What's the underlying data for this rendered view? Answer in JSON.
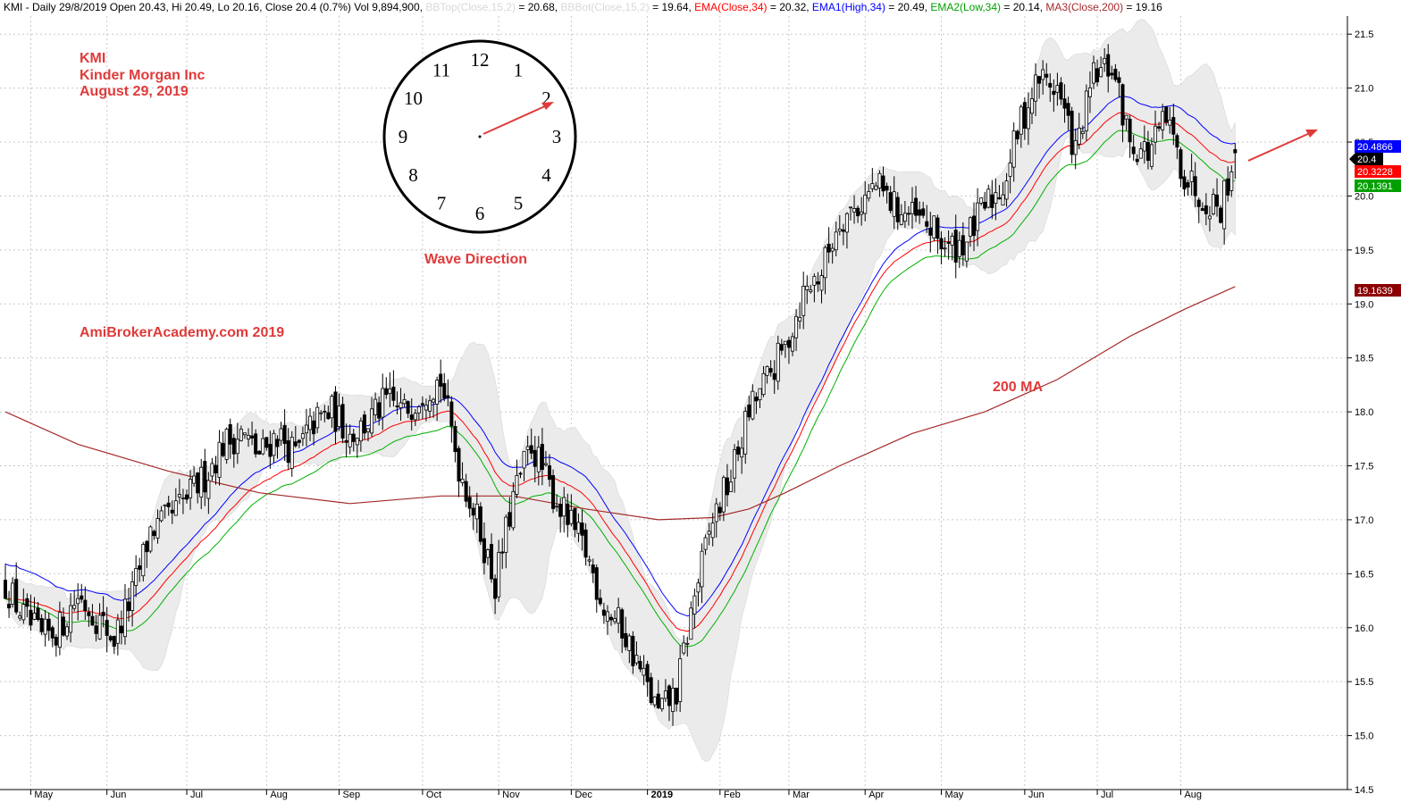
{
  "header": {
    "info": "KMI - Daily 29/8/2019 Open 20.43, Hi 20.49, Lo 20.16, Close 20.4 (0.7%) Vol 9,894,900",
    "bbtop_label": "BBTop(Close,15,2)",
    "bbtop_value": " = 20.68, ",
    "bbbot_label": "BBBot(Close,15,2)",
    "bbbot_value": " = 19.64, ",
    "ema_label": "EMA(Close,34)",
    "ema_value": " = 20.32, ",
    "ema1_label": "EMA1(High,34)",
    "ema1_value": " = 20.49, ",
    "ema2_label": "EMA2(Low,34)",
    "ema2_value": " = 20.14, ",
    "ma3_label": "MA3(Close,200)",
    "ma3_value": " = 19.16"
  },
  "annotations": {
    "ticker": "KMI",
    "company": "Kinder Morgan Inc",
    "date": "August 29, 2019",
    "watermark": "AmiBrokerAcademy.com  2019",
    "wave_direction": "Wave Direction",
    "ma_label": "200 MA"
  },
  "clock": {
    "numbers": [
      "12",
      "1",
      "2",
      "3",
      "4",
      "5",
      "6",
      "7",
      "8",
      "9",
      "10",
      "11"
    ],
    "hand_points_to": "2"
  },
  "price_tags": [
    {
      "label": "20.4866",
      "color": "#0000ff"
    },
    {
      "label": "20.4",
      "color": "#000000"
    },
    {
      "label": "20.3228",
      "color": "#ff0000"
    },
    {
      "label": "20.1391",
      "color": "#00a000"
    },
    {
      "label": "19.1639",
      "color": "#8b0000"
    }
  ],
  "colors": {
    "candle": "#000000",
    "bands_fill": "#ebebeb",
    "ema": "#ff0000",
    "ema1": "#0000ff",
    "ema2": "#00b000",
    "ma200": "#a52a2a",
    "annotation": "#e03a3a",
    "grid": "#c8c8c8"
  },
  "chart_data": {
    "type": "candlestick",
    "ylim": [
      14.5,
      21.75
    ],
    "y_ticks": [
      "14.5",
      "15.0",
      "15.5",
      "16.0",
      "16.5",
      "17.0",
      "17.5",
      "18.0",
      "18.5",
      "19.0",
      "19.5",
      "20.0",
      "20.5",
      "21.0",
      "21.5"
    ],
    "x_tick_labels": [
      "May",
      "Jun",
      "Jul",
      "Aug",
      "Sep",
      "Oct",
      "Nov",
      "Dec",
      "2019",
      "Feb",
      "Mar",
      "Apr",
      "May",
      "Jun",
      "Jul",
      "Aug"
    ],
    "x_tick_bold": [
      false,
      false,
      false,
      false,
      false,
      false,
      false,
      false,
      true,
      false,
      false,
      false,
      false,
      false,
      false,
      false
    ],
    "close_path": [
      [
        0,
        16.4
      ],
      [
        5,
        16.1
      ],
      [
        10,
        15.9
      ],
      [
        15,
        16.0
      ],
      [
        20,
        16.3
      ],
      [
        25,
        16.1
      ],
      [
        30,
        15.9
      ],
      [
        35,
        16.3
      ],
      [
        40,
        16.9
      ],
      [
        45,
        17.0
      ],
      [
        50,
        17.2
      ],
      [
        55,
        17.4
      ],
      [
        60,
        17.7
      ],
      [
        65,
        17.8
      ],
      [
        70,
        17.6
      ],
      [
        75,
        17.8
      ],
      [
        80,
        17.6
      ],
      [
        85,
        17.9
      ],
      [
        90,
        18.0
      ],
      [
        95,
        17.8
      ],
      [
        100,
        17.9
      ],
      [
        105,
        18.1
      ],
      [
        110,
        18.0
      ],
      [
        115,
        18.2
      ],
      [
        120,
        18.3
      ],
      [
        125,
        17.5
      ],
      [
        130,
        17.0
      ],
      [
        135,
        16.4
      ],
      [
        140,
        17.2
      ],
      [
        145,
        17.7
      ],
      [
        150,
        17.3
      ],
      [
        155,
        17.0
      ],
      [
        160,
        16.7
      ],
      [
        165,
        16.2
      ],
      [
        170,
        16.0
      ],
      [
        175,
        15.6
      ],
      [
        180,
        15.2
      ],
      [
        185,
        15.4
      ],
      [
        190,
        16.3
      ],
      [
        195,
        17.0
      ],
      [
        200,
        17.4
      ],
      [
        205,
        18.0
      ],
      [
        210,
        18.3
      ],
      [
        215,
        18.6
      ],
      [
        220,
        19.1
      ],
      [
        225,
        19.3
      ],
      [
        230,
        19.8
      ],
      [
        235,
        19.9
      ],
      [
        240,
        20.1
      ],
      [
        245,
        19.9
      ],
      [
        250,
        19.8
      ],
      [
        255,
        19.7
      ],
      [
        260,
        19.5
      ],
      [
        265,
        19.6
      ],
      [
        270,
        19.9
      ],
      [
        275,
        20.1
      ],
      [
        280,
        20.7
      ],
      [
        285,
        21.1
      ],
      [
        290,
        21.0
      ],
      [
        295,
        20.4
      ],
      [
        300,
        21.1
      ],
      [
        305,
        21.2
      ],
      [
        310,
        20.5
      ],
      [
        315,
        20.4
      ],
      [
        320,
        20.7
      ],
      [
        325,
        20.2
      ],
      [
        330,
        20.0
      ],
      [
        335,
        19.9
      ],
      [
        339,
        20.4
      ]
    ],
    "ma200_path": [
      [
        0,
        18.0
      ],
      [
        20,
        17.7
      ],
      [
        45,
        17.45
      ],
      [
        70,
        17.25
      ],
      [
        95,
        17.15
      ],
      [
        120,
        17.22
      ],
      [
        140,
        17.22
      ],
      [
        160,
        17.1
      ],
      [
        180,
        17.0
      ],
      [
        195,
        17.02
      ],
      [
        205,
        17.1
      ],
      [
        215,
        17.25
      ],
      [
        230,
        17.5
      ],
      [
        250,
        17.8
      ],
      [
        270,
        18.0
      ],
      [
        290,
        18.3
      ],
      [
        310,
        18.7
      ],
      [
        325,
        18.95
      ],
      [
        339,
        19.16
      ]
    ],
    "ema_last": 20.32,
    "ema1_last": 20.49,
    "ema2_last": 20.14,
    "bbtop_last": 20.68,
    "bbbot_last": 19.64,
    "ma200_last": 19.16,
    "last_close": 20.4,
    "last_open": 20.43,
    "last_high": 20.49,
    "last_low": 20.16,
    "volume": "9,894,900"
  }
}
